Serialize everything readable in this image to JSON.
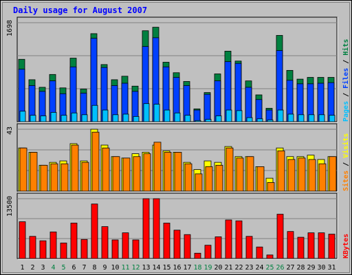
{
  "chart_data": {
    "type": "bar",
    "title": "Daily usage for August 2007",
    "categories": [
      "1",
      "2",
      "3",
      "4",
      "5",
      "6",
      "7",
      "8",
      "9",
      "10",
      "11",
      "12",
      "13",
      "14",
      "15",
      "16",
      "17",
      "18",
      "19",
      "20",
      "21",
      "22",
      "23",
      "24",
      "25",
      "26",
      "27",
      "28",
      "29",
      "30",
      "31"
    ],
    "weekend_days": [
      "4",
      "5",
      "11",
      "12",
      "18",
      "19",
      "25",
      "26"
    ],
    "panels": [
      {
        "id": "hits",
        "max_label": "1698",
        "ylim": [
          0,
          1698
        ],
        "legend": [
          {
            "label": "Hits",
            "color": "#008040"
          },
          {
            "label": "Files",
            "color": "#0040ff"
          },
          {
            "label": "Pages",
            "color": "#00c0ff"
          }
        ],
        "legend_separator": " / ",
        "series": [
          {
            "name": "Hits",
            "color": "#008040",
            "values": [
              1070,
              720,
              590,
              810,
              580,
              1090,
              560,
              1510,
              980,
              720,
              780,
              610,
              1560,
              1620,
              1020,
              840,
              690,
              220,
              500,
              820,
              1210,
              1040,
              700,
              460,
              230,
              1480,
              880,
              730,
              760,
              760,
              760
            ]
          },
          {
            "name": "Files",
            "color": "#0040ff",
            "values": [
              900,
              620,
              520,
              700,
              480,
              940,
              490,
              1430,
              930,
              620,
              660,
              520,
              1290,
              1440,
              940,
              760,
              620,
              200,
              470,
              700,
              1030,
              1000,
              590,
              380,
              200,
              1220,
              710,
              650,
              650,
              660,
              670
            ]
          },
          {
            "name": "Pages",
            "color": "#00c0ff",
            "values": [
              180,
              110,
              100,
              160,
              110,
              150,
              120,
              280,
              200,
              120,
              130,
              90,
              310,
              300,
              200,
              150,
              110,
              20,
              40,
              100,
              200,
              190,
              70,
              50,
              30,
              200,
              130,
              120,
              120,
              120,
              110
            ]
          }
        ]
      },
      {
        "id": "visits",
        "max_label": "43",
        "ylim": [
          0,
          43
        ],
        "legend": [
          {
            "label": "Visits",
            "color": "#ffff00"
          },
          {
            "label": "Sites",
            "color": "#ff8000"
          }
        ],
        "legend_separator": " / ",
        "series": [
          {
            "name": "Visits",
            "color": "#ffff00",
            "values": [
              30,
              27,
              18,
              20,
              21,
              33,
              21,
              43,
              32,
              24,
              23,
              26,
              27,
              32,
              28,
              27,
              20,
              15,
              21,
              20,
              31,
              24,
              24,
              17,
              9,
              30,
              24,
              24,
              25,
              22,
              24
            ]
          },
          {
            "name": "Sites",
            "color": "#ff8000",
            "values": [
              30,
              27,
              18,
              19,
              19,
              32,
              20,
              41,
              30,
              24,
              23,
              24,
              26,
              34,
              27,
              27,
              19,
              12,
              17,
              18,
              30,
              23,
              24,
              17,
              6,
              28,
              22,
              23,
              22,
              19,
              24
            ]
          }
        ]
      },
      {
        "id": "kbytes",
        "max_label": "13500",
        "ylim": [
          0,
          13500
        ],
        "legend": [
          {
            "label": "KBytes",
            "color": "#ff0000"
          }
        ],
        "legend_separator": " / ",
        "series": [
          {
            "name": "KBytes",
            "color": "#ff0000",
            "values": [
              8300,
              5000,
              4000,
              6000,
              3500,
              8000,
              4300,
              12300,
              7200,
              4200,
              5800,
              4200,
              13500,
              13500,
              8000,
              6400,
              5400,
              1200,
              3000,
              4900,
              8700,
              8500,
              5000,
              2600,
              800,
              10000,
              6100,
              4800,
              5800,
              5800,
              5500
            ]
          }
        ]
      }
    ],
    "colors": {
      "background": "#c0c0c0",
      "title": "#0000ff",
      "bar_outline": "#000000",
      "gridline": "#808080",
      "weekday_label": "#000000",
      "weekend_label": "#008040"
    }
  }
}
